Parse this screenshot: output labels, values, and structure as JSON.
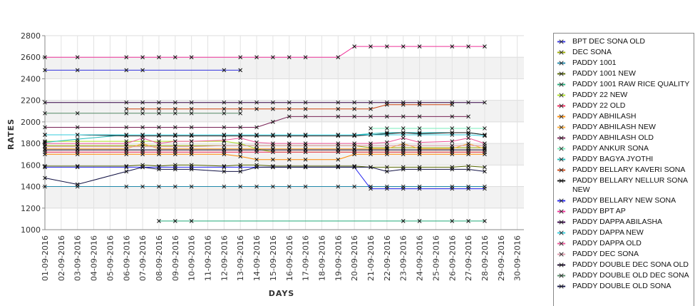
{
  "chart_data": {
    "type": "line",
    "title": "",
    "xlabel": "DAYS",
    "ylabel": "RATES",
    "ylim": [
      1000,
      2800
    ],
    "yticks": [
      1000,
      1200,
      1400,
      1600,
      1800,
      2000,
      2200,
      2400,
      2600,
      2800
    ],
    "x_tick_labels": [
      "01-09-2016",
      "02-09-2016",
      "03-09-2016",
      "04-09-2016",
      "05-09-2016",
      "06-09-2016",
      "07-09-2016",
      "08-09-2016",
      "09-09-2016",
      "10-09-2016",
      "11-09-2016",
      "12-09-2016",
      "13-09-2016",
      "14-09-2016",
      "15-09-2016",
      "16-09-2016",
      "17-09-2016",
      "18-09-2016",
      "19-09-2016",
      "20-09-2016",
      "21-09-2016",
      "22-09-2016",
      "23-09-2016",
      "24-09-2016",
      "25-09-2016",
      "26-09-2016",
      "27-09-2016",
      "28-09-2016",
      "29-09-2016",
      "30-09-2016"
    ],
    "x_days": [
      1,
      3,
      6,
      7,
      8,
      9,
      10,
      12,
      13,
      14,
      15,
      16,
      17,
      19,
      20,
      21,
      22,
      23,
      24,
      26,
      27,
      28
    ],
    "grid": true,
    "legend_position": "right",
    "series": [
      {
        "name": "BPT DEC SONA OLD",
        "color": "#3333dd",
        "values": [
          2480,
          2480,
          2480,
          2480,
          null,
          null,
          null,
          2480,
          2480,
          null,
          null,
          null,
          null,
          null,
          null,
          null,
          null,
          null,
          null,
          null,
          null,
          null
        ]
      },
      {
        "name": "DEC SONA",
        "color": "#99aa00",
        "values": [
          1780,
          1780,
          1780,
          1780,
          1780,
          1780,
          1780,
          1780,
          1780,
          1780,
          1780,
          1780,
          1780,
          1780,
          1780,
          1760,
          1760,
          1760,
          1760,
          1760,
          1760,
          1760
        ]
      },
      {
        "name": "PADDY 1001",
        "color": "#2288aa",
        "values": [
          1400,
          1400,
          1400,
          1400,
          1400,
          1400,
          1400,
          1400,
          1400,
          1400,
          1400,
          1400,
          1400,
          1400,
          1400,
          1400,
          1400,
          1400,
          1400,
          1400,
          1400,
          1400
        ]
      },
      {
        "name": "PADDY 1001 NEW",
        "color": "#556600",
        "values": [
          1590,
          1590,
          1590,
          1600,
          1590,
          1600,
          1600,
          1590,
          1600,
          1600,
          1590,
          1590,
          1590,
          1590,
          1590,
          1580,
          1580,
          1580,
          1580,
          1580,
          1590,
          1580
        ]
      },
      {
        "name": "PADDY 1001 RAW RICE QUALITY",
        "color": "#22aa77",
        "values": [
          null,
          null,
          null,
          null,
          1080,
          1080,
          1080,
          null,
          null,
          null,
          null,
          null,
          null,
          null,
          null,
          null,
          null,
          1080,
          1080,
          1080,
          1080,
          1080
        ]
      },
      {
        "name": "PADDY 22 NEW",
        "color": "#aadd22",
        "values": [
          1820,
          1820,
          1820,
          1820,
          1820,
          1820,
          1820,
          1820,
          1800,
          1750,
          1720,
          1720,
          1720,
          1720,
          1720,
          1720,
          1720,
          1720,
          1720,
          1720,
          1720,
          1720
        ]
      },
      {
        "name": "PADDY 22 OLD",
        "color": "#ee2255",
        "values": [
          1720,
          1720,
          1720,
          1720,
          1720,
          1720,
          1720,
          1720,
          1720,
          1720,
          1720,
          1720,
          1720,
          1720,
          1720,
          1720,
          1720,
          1720,
          1720,
          1720,
          1720,
          1720
        ]
      },
      {
        "name": "PADDY ABHILASH",
        "color": "#ff8800",
        "values": [
          1700,
          1700,
          1700,
          1700,
          1700,
          1700,
          1700,
          1700,
          1680,
          1650,
          1650,
          1650,
          1650,
          1650,
          1700,
          1700,
          1700,
          1700,
          1700,
          1700,
          1700,
          1700
        ]
      },
      {
        "name": "PADDY ABHILASH NEW",
        "color": "#ffaa33",
        "values": [
          1750,
          1750,
          1750,
          1800,
          1750,
          1750,
          1750,
          1750,
          1750,
          1750,
          1750,
          1750,
          1750,
          1750,
          1750,
          1750,
          1750,
          1800,
          1750,
          1750,
          1800,
          1750
        ]
      },
      {
        "name": "PADDY ABHILASH OLD",
        "color": "#772255",
        "values": [
          1950,
          1950,
          1950,
          1950,
          1950,
          1950,
          1950,
          1950,
          1950,
          1950,
          2000,
          2050,
          2050,
          2050,
          2050,
          2050,
          2050,
          2050,
          2050,
          2050,
          2050,
          null
        ]
      },
      {
        "name": "PADDY ANKUR SONA",
        "color": "#77eebb",
        "values": [
          null,
          null,
          null,
          null,
          null,
          null,
          null,
          null,
          null,
          null,
          null,
          null,
          null,
          null,
          null,
          1940,
          1940,
          1940,
          1940,
          1940,
          1940,
          1940
        ]
      },
      {
        "name": "PADDY BAGYA JYOTHI",
        "color": "#22bbbb",
        "values": [
          1810,
          1840,
          1880,
          1880,
          1880,
          1880,
          1880,
          1880,
          1880,
          1880,
          1880,
          1880,
          1880,
          1880,
          1880,
          1890,
          1900,
          1900,
          1900,
          1900,
          1900,
          1880
        ]
      },
      {
        "name": "PADDY BELLARY KAVERI SONA",
        "color": "#cc4411",
        "values": [
          null,
          null,
          2120,
          2120,
          2120,
          2120,
          2120,
          2120,
          2120,
          2120,
          2120,
          2120,
          2120,
          2120,
          2120,
          2120,
          2160,
          2160,
          2160,
          2160,
          null,
          null
        ]
      },
      {
        "name": "PADDY BELLARY NELLUR SONA NEW",
        "color": "#111111",
        "values": [
          1880,
          1880,
          1870,
          1870,
          1870,
          1870,
          1870,
          1870,
          1870,
          1870,
          1870,
          1870,
          1870,
          1870,
          1870,
          1880,
          1890,
          1900,
          1890,
          1900,
          1900,
          1880
        ]
      },
      {
        "name": "PADDY BELLARY NEW SONA",
        "color": "#2222ee",
        "values": [
          1580,
          1580,
          1580,
          1580,
          1580,
          1580,
          1580,
          1580,
          1580,
          1580,
          1580,
          1580,
          1580,
          1580,
          1580,
          1380,
          1380,
          1380,
          1380,
          1380,
          1380,
          1380
        ]
      },
      {
        "name": "PADDY BPT AP",
        "color": "#ee3399",
        "values": [
          2600,
          2600,
          2600,
          2600,
          2600,
          2600,
          2600,
          null,
          2600,
          2600,
          2600,
          2600,
          2600,
          2600,
          2700,
          2700,
          2700,
          2700,
          2700,
          2700,
          2700,
          2700
        ]
      },
      {
        "name": "PADDY DAPPA ABILASHA",
        "color": "#330044",
        "values": [
          2180,
          null,
          2180,
          2180,
          2180,
          2180,
          2180,
          2180,
          2180,
          2180,
          2180,
          2180,
          2180,
          2180,
          2180,
          2180,
          2180,
          2180,
          2180,
          2180,
          2180,
          2180
        ]
      },
      {
        "name": "PADDY DAPPA NEW",
        "color": "#33ccdd",
        "values": [
          1880,
          1880,
          1880,
          1880,
          1880,
          1880,
          1880,
          1880,
          1880,
          1880,
          1880,
          1880,
          1880,
          1880,
          1880,
          1880,
          1880,
          1880,
          1880,
          1880,
          1880,
          1870
        ]
      },
      {
        "name": "PADDY DAPPA OLD",
        "color": "#ee5599",
        "values": [
          1800,
          1800,
          1800,
          1850,
          1800,
          1820,
          1820,
          1830,
          1850,
          1810,
          1800,
          1800,
          1800,
          1800,
          1800,
          1800,
          1810,
          1850,
          1810,
          1820,
          1850,
          1800
        ]
      },
      {
        "name": "PADDY DEC SONA",
        "color": "#dd99aa",
        "values": [
          1770,
          1770,
          1770,
          1770,
          1770,
          1770,
          1770,
          1780,
          1780,
          1780,
          1780,
          1780,
          1780,
          1780,
          1780,
          1780,
          1780,
          1780,
          1780,
          1780,
          1780,
          1780
        ]
      },
      {
        "name": "PADDY DOUBLE DEC SONA OLD",
        "color": "#110022",
        "values": [
          1740,
          1740,
          1740,
          1740,
          1740,
          1740,
          1740,
          1740,
          1740,
          1740,
          1740,
          1740,
          1740,
          1740,
          1740,
          1740,
          1740,
          1740,
          1740,
          1740,
          1740,
          1740
        ]
      },
      {
        "name": "PADDY DOUBLE OLD DEC SONA",
        "color": "#558866",
        "values": [
          2080,
          2080,
          2080,
          2080,
          2080,
          2080,
          2080,
          2080,
          2080,
          null,
          null,
          null,
          null,
          null,
          null,
          null,
          null,
          null,
          null,
          null,
          null,
          null
        ]
      },
      {
        "name": "PADDY DOUBLE OLD SONA",
        "color": "#111144",
        "values": [
          1480,
          1420,
          1540,
          1580,
          1560,
          1560,
          1560,
          1540,
          1540,
          1580,
          1580,
          1580,
          1580,
          1580,
          1580,
          1580,
          1540,
          1560,
          1560,
          1560,
          1560,
          1540
        ]
      }
    ]
  }
}
